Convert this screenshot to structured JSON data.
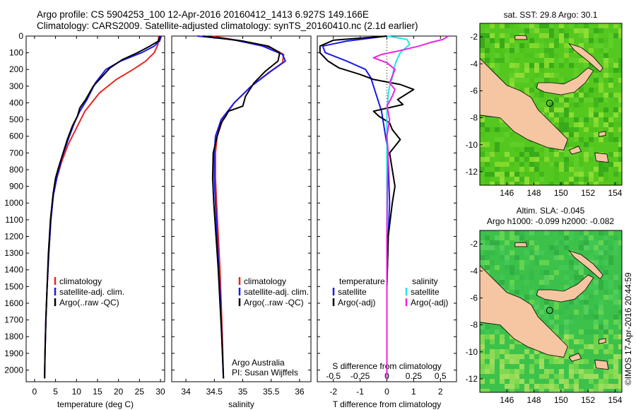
{
  "header": {
    "line1": "Argo profile: CS 5904253_100 12-Apr-2016 20160412_1413 6.927S 149.166E",
    "line2": "Climatology: CARS2009. Satellite-adjusted climatology: synTS_20160410.nc (2.1d earlier)"
  },
  "side_label": "©IMOS 17-Apr-2016 20:44:59",
  "colors": {
    "climatology": "#e8261e",
    "satellite": "#1a1aee",
    "argo": "#000000",
    "sal_satellite": "#22e4e4",
    "sal_argo": "#ee22dd",
    "land": "#f6c6a2",
    "ocean_sst": "#55c820",
    "ocean_sla": "#3cc24a"
  },
  "chart_data": [
    {
      "type": "line",
      "name": "temperature-profile",
      "xlabel": "temperature (deg C)",
      "xlim": [
        -2,
        31
      ],
      "xticks": [
        0,
        5,
        10,
        15,
        20,
        25,
        30
      ],
      "ylim": [
        0,
        2070
      ],
      "yticks": [
        0,
        100,
        200,
        300,
        400,
        500,
        600,
        700,
        800,
        900,
        1000,
        1100,
        1200,
        1300,
        1400,
        1500,
        1600,
        1700,
        1800,
        1900,
        2000
      ],
      "legend": [
        "climatology",
        "satellite-adj. clim.",
        "Argo(..raw -QC)"
      ],
      "legend_position": "lower-right",
      "series": [
        {
          "name": "climatology",
          "color_key": "climatology",
          "points": [
            [
              29.6,
              0
            ],
            [
              29.4,
              50
            ],
            [
              28.5,
              100
            ],
            [
              26.5,
              150
            ],
            [
              23.5,
              200
            ],
            [
              19.5,
              260
            ],
            [
              15.5,
              340
            ],
            [
              12.0,
              450
            ],
            [
              10.0,
              550
            ],
            [
              8.0,
              650
            ],
            [
              6.5,
              750
            ],
            [
              5.3,
              850
            ],
            [
              4.5,
              950
            ],
            [
              3.9,
              1100
            ],
            [
              3.4,
              1300
            ],
            [
              3.0,
              1500
            ],
            [
              2.7,
              1700
            ],
            [
              2.5,
              1900
            ],
            [
              2.4,
              2050
            ]
          ]
        },
        {
          "name": "satellite-adj. clim.",
          "color_key": "satellite",
          "points": [
            [
              30.2,
              0
            ],
            [
              29.8,
              30
            ],
            [
              28.5,
              60
            ],
            [
              25.5,
              100
            ],
            [
              20.5,
              150
            ],
            [
              17.0,
              200
            ],
            [
              14.5,
              280
            ],
            [
              12.5,
              380
            ],
            [
              10.8,
              450
            ],
            [
              9.5,
              520
            ],
            [
              8.0,
              620
            ],
            [
              6.5,
              730
            ],
            [
              5.3,
              850
            ],
            [
              4.5,
              950
            ],
            [
              3.9,
              1100
            ],
            [
              3.4,
              1300
            ],
            [
              3.0,
              1500
            ],
            [
              2.7,
              1700
            ],
            [
              2.5,
              1900
            ],
            [
              2.4,
              2050
            ]
          ]
        },
        {
          "name": "Argo(..raw -QC)",
          "color_key": "argo",
          "points": [
            [
              29.9,
              0
            ],
            [
              29.5,
              30
            ],
            [
              27.5,
              60
            ],
            [
              24.5,
              100
            ],
            [
              21.0,
              140
            ],
            [
              18.0,
              190
            ],
            [
              16.2,
              240
            ],
            [
              14.0,
              300
            ],
            [
              12.2,
              380
            ],
            [
              10.8,
              430
            ],
            [
              10.2,
              480
            ],
            [
              9.0,
              540
            ],
            [
              7.8,
              620
            ],
            [
              6.8,
              700
            ],
            [
              5.8,
              780
            ],
            [
              5.0,
              850
            ],
            [
              4.4,
              950
            ],
            [
              3.8,
              1100
            ],
            [
              3.3,
              1300
            ],
            [
              3.0,
              1500
            ],
            [
              2.7,
              1700
            ],
            [
              2.5,
              1900
            ],
            [
              2.4,
              2050
            ]
          ]
        }
      ]
    },
    {
      "type": "line",
      "name": "salinity-profile",
      "xlabel": "salinity",
      "xlim": [
        33.75,
        36.2
      ],
      "xticks": [
        34,
        34.5,
        35,
        35.5,
        36
      ],
      "ylim": [
        0,
        2070
      ],
      "legend": [
        "climatology",
        "satellite-adj. clim.",
        "Argo(..raw -QC)"
      ],
      "legend_position": "lower-right",
      "annotation": [
        "Argo Australia",
        "PI: Susan Wijffels"
      ],
      "series": [
        {
          "name": "climatology",
          "color_key": "climatology",
          "points": [
            [
              34.45,
              0
            ],
            [
              35.0,
              30
            ],
            [
              35.5,
              70
            ],
            [
              35.72,
              110
            ],
            [
              35.7,
              160
            ],
            [
              35.45,
              220
            ],
            [
              35.15,
              300
            ],
            [
              34.85,
              400
            ],
            [
              34.65,
              500
            ],
            [
              34.55,
              600
            ],
            [
              34.52,
              700
            ],
            [
              34.52,
              850
            ],
            [
              34.54,
              1000
            ],
            [
              34.57,
              1200
            ],
            [
              34.6,
              1400
            ],
            [
              34.62,
              1600
            ],
            [
              34.64,
              1800
            ],
            [
              34.66,
              2050
            ]
          ]
        },
        {
          "name": "satellite-adj. clim.",
          "color_key": "satellite",
          "points": [
            [
              34.2,
              0
            ],
            [
              34.8,
              20
            ],
            [
              35.35,
              60
            ],
            [
              35.7,
              110
            ],
            [
              35.75,
              150
            ],
            [
              35.5,
              210
            ],
            [
              35.15,
              300
            ],
            [
              34.85,
              400
            ],
            [
              34.62,
              500
            ],
            [
              34.52,
              600
            ],
            [
              34.5,
              700
            ],
            [
              34.5,
              850
            ],
            [
              34.52,
              1000
            ],
            [
              34.55,
              1200
            ],
            [
              34.58,
              1400
            ],
            [
              34.61,
              1600
            ],
            [
              34.63,
              1800
            ],
            [
              34.66,
              2050
            ]
          ]
        },
        {
          "name": "Argo(..raw -QC)",
          "color_key": "argo",
          "points": [
            [
              34.3,
              0
            ],
            [
              35.0,
              30
            ],
            [
              35.45,
              60
            ],
            [
              35.65,
              100
            ],
            [
              35.62,
              150
            ],
            [
              35.4,
              210
            ],
            [
              35.2,
              280
            ],
            [
              35.05,
              360
            ],
            [
              35.0,
              420
            ],
            [
              34.75,
              450
            ],
            [
              34.7,
              480
            ],
            [
              34.62,
              520
            ],
            [
              34.55,
              600
            ],
            [
              34.48,
              700
            ],
            [
              34.47,
              850
            ],
            [
              34.49,
              1000
            ],
            [
              34.53,
              1200
            ],
            [
              34.57,
              1400
            ],
            [
              34.6,
              1600
            ],
            [
              34.63,
              1800
            ],
            [
              34.66,
              2050
            ]
          ]
        }
      ]
    },
    {
      "type": "line",
      "name": "difference-profile",
      "xlabel": "T difference from climatology",
      "xlabel_top": "S difference from climatology",
      "xlim": [
        -2.6,
        2.6
      ],
      "xticks_bottom": [
        -2,
        -1,
        0,
        1,
        2
      ],
      "xticks_top_labels": [
        "-0.5",
        "-0.25",
        "0",
        "0.25",
        "0.5"
      ],
      "ylim": [
        0,
        2070
      ],
      "legend_temperature": {
        "heading": "temperature",
        "items": [
          "satellite",
          "Argo(-adj)"
        ]
      },
      "legend_salinity": {
        "heading": "salinity",
        "items": [
          "satellite",
          "Argo(-adj)"
        ]
      },
      "series": [
        {
          "name": "T satellite",
          "color_key": "satellite",
          "points": [
            [
              0.0,
              0
            ],
            [
              -1.5,
              30
            ],
            [
              -2.4,
              60
            ],
            [
              -2.3,
              100
            ],
            [
              -1.5,
              150
            ],
            [
              -0.8,
              200
            ],
            [
              -0.6,
              250
            ],
            [
              -0.4,
              350
            ],
            [
              -0.2,
              450
            ],
            [
              -0.1,
              550
            ],
            [
              0.0,
              650
            ],
            [
              0.05,
              750
            ],
            [
              0.1,
              1000
            ],
            [
              0.05,
              1200
            ],
            [
              0.0,
              1500
            ],
            [
              0.0,
              2050
            ]
          ]
        },
        {
          "name": "T Argo(-adj)",
          "color_key": "argo",
          "points": [
            [
              0.0,
              0
            ],
            [
              -2.0,
              25
            ],
            [
              -2.5,
              60
            ],
            [
              -2.5,
              100
            ],
            [
              -2.2,
              150
            ],
            [
              -1.8,
              190
            ],
            [
              -1.0,
              230
            ],
            [
              -0.5,
              260
            ],
            [
              0.5,
              290
            ],
            [
              1.0,
              320
            ],
            [
              0.4,
              380
            ],
            [
              0.6,
              410
            ],
            [
              -0.5,
              450
            ],
            [
              -0.3,
              480
            ],
            [
              0.1,
              520
            ],
            [
              0.2,
              560
            ],
            [
              0.5,
              620
            ],
            [
              0.3,
              660
            ],
            [
              0.1,
              700
            ],
            [
              0.3,
              900
            ],
            [
              0.2,
              1000
            ],
            [
              0.05,
              1200
            ],
            [
              0.0,
              1500
            ],
            [
              0.0,
              2050
            ]
          ]
        },
        {
          "name": "S satellite",
          "color_key": "sal_satellite",
          "points": [
            [
              0.0,
              0
            ],
            [
              0.75,
              20
            ],
            [
              0.85,
              50
            ],
            [
              0.5,
              100
            ],
            [
              0.35,
              150
            ],
            [
              0.25,
              200
            ],
            [
              0.2,
              250
            ],
            [
              0.1,
              300
            ],
            [
              0.05,
              350
            ],
            [
              0.0,
              450
            ],
            [
              0.0,
              2050
            ]
          ]
        },
        {
          "name": "S Argo(-adj)",
          "color_key": "sal_argo",
          "points": [
            [
              2.3,
              0
            ],
            [
              2.1,
              20
            ],
            [
              1.6,
              40
            ],
            [
              1.2,
              60
            ],
            [
              0.4,
              90
            ],
            [
              -0.2,
              110
            ],
            [
              -0.5,
              130
            ],
            [
              0.0,
              160
            ],
            [
              0.3,
              200
            ],
            [
              0.2,
              240
            ],
            [
              0.1,
              280
            ],
            [
              0.3,
              320
            ],
            [
              0.2,
              360
            ],
            [
              0.0,
              420
            ],
            [
              0.1,
              500
            ],
            [
              0.0,
              600
            ],
            [
              0.05,
              700
            ],
            [
              0.02,
              900
            ],
            [
              0.0,
              1200
            ],
            [
              0.0,
              2050
            ]
          ]
        }
      ]
    },
    {
      "type": "heatmap",
      "name": "sst-map",
      "title": "sat. SST: 29.8 Argo: 30.1",
      "xticks": [
        146,
        148,
        150,
        152,
        154
      ],
      "yticks": [
        -2,
        -4,
        -6,
        -8,
        -10,
        -12
      ],
      "xlim": [
        144,
        154.5
      ],
      "ylim": [
        -13,
        -1
      ],
      "marker": [
        149.166,
        -6.927
      ]
    },
    {
      "type": "heatmap",
      "name": "sla-map",
      "title_lines": [
        "Altim. SLA: -0.045",
        "Argo h1000: -0.099 h2000: -0.082"
      ],
      "xticks": [
        146,
        148,
        150,
        152,
        154
      ],
      "yticks": [
        -2,
        -4,
        -6,
        -8,
        -10,
        -12
      ],
      "xlim": [
        144,
        154.5
      ],
      "ylim": [
        -13,
        -1
      ],
      "marker": [
        149.166,
        -6.927
      ]
    }
  ]
}
